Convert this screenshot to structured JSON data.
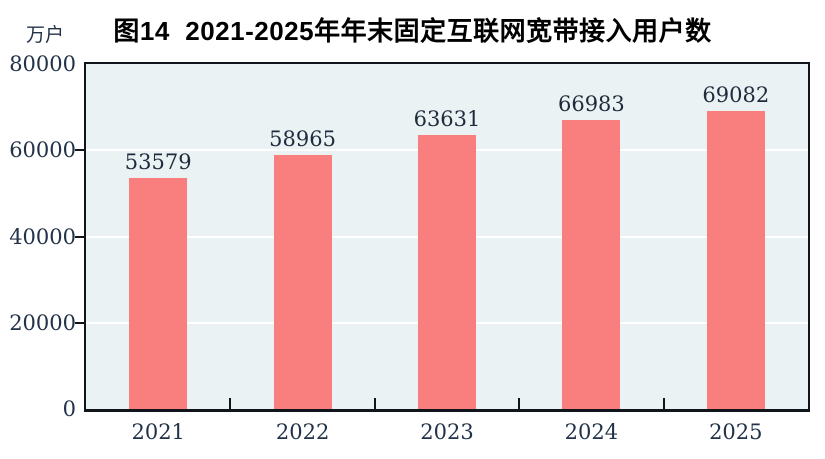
{
  "figure": {
    "title": "图14  2021-2025年年末固定互联网宽带接入用户数",
    "unit_label": "万户"
  },
  "chart_data": {
    "type": "bar",
    "title": "图14  2021-2025年年末固定互联网宽带接入用户数",
    "categories": [
      "2021",
      "2022",
      "2023",
      "2024",
      "2025"
    ],
    "values": [
      53579,
      58965,
      63631,
      66983,
      69082
    ],
    "data_labels_shown": true,
    "xlabel": "",
    "ylabel": "万户",
    "ylim": [
      0,
      80000
    ],
    "yticks": [
      0,
      20000,
      40000,
      60000,
      80000
    ],
    "grid": {
      "horizontal": true,
      "vertical": false
    },
    "legend": "none",
    "colors": {
      "bar": "#F97E7E",
      "plot_background": "#EAF2F4",
      "gridline": "#FFFFFF",
      "axis": "#10151C",
      "tick_text": "#223349",
      "data_label_text": "#1E2B3C",
      "title_text": "#000000"
    }
  }
}
